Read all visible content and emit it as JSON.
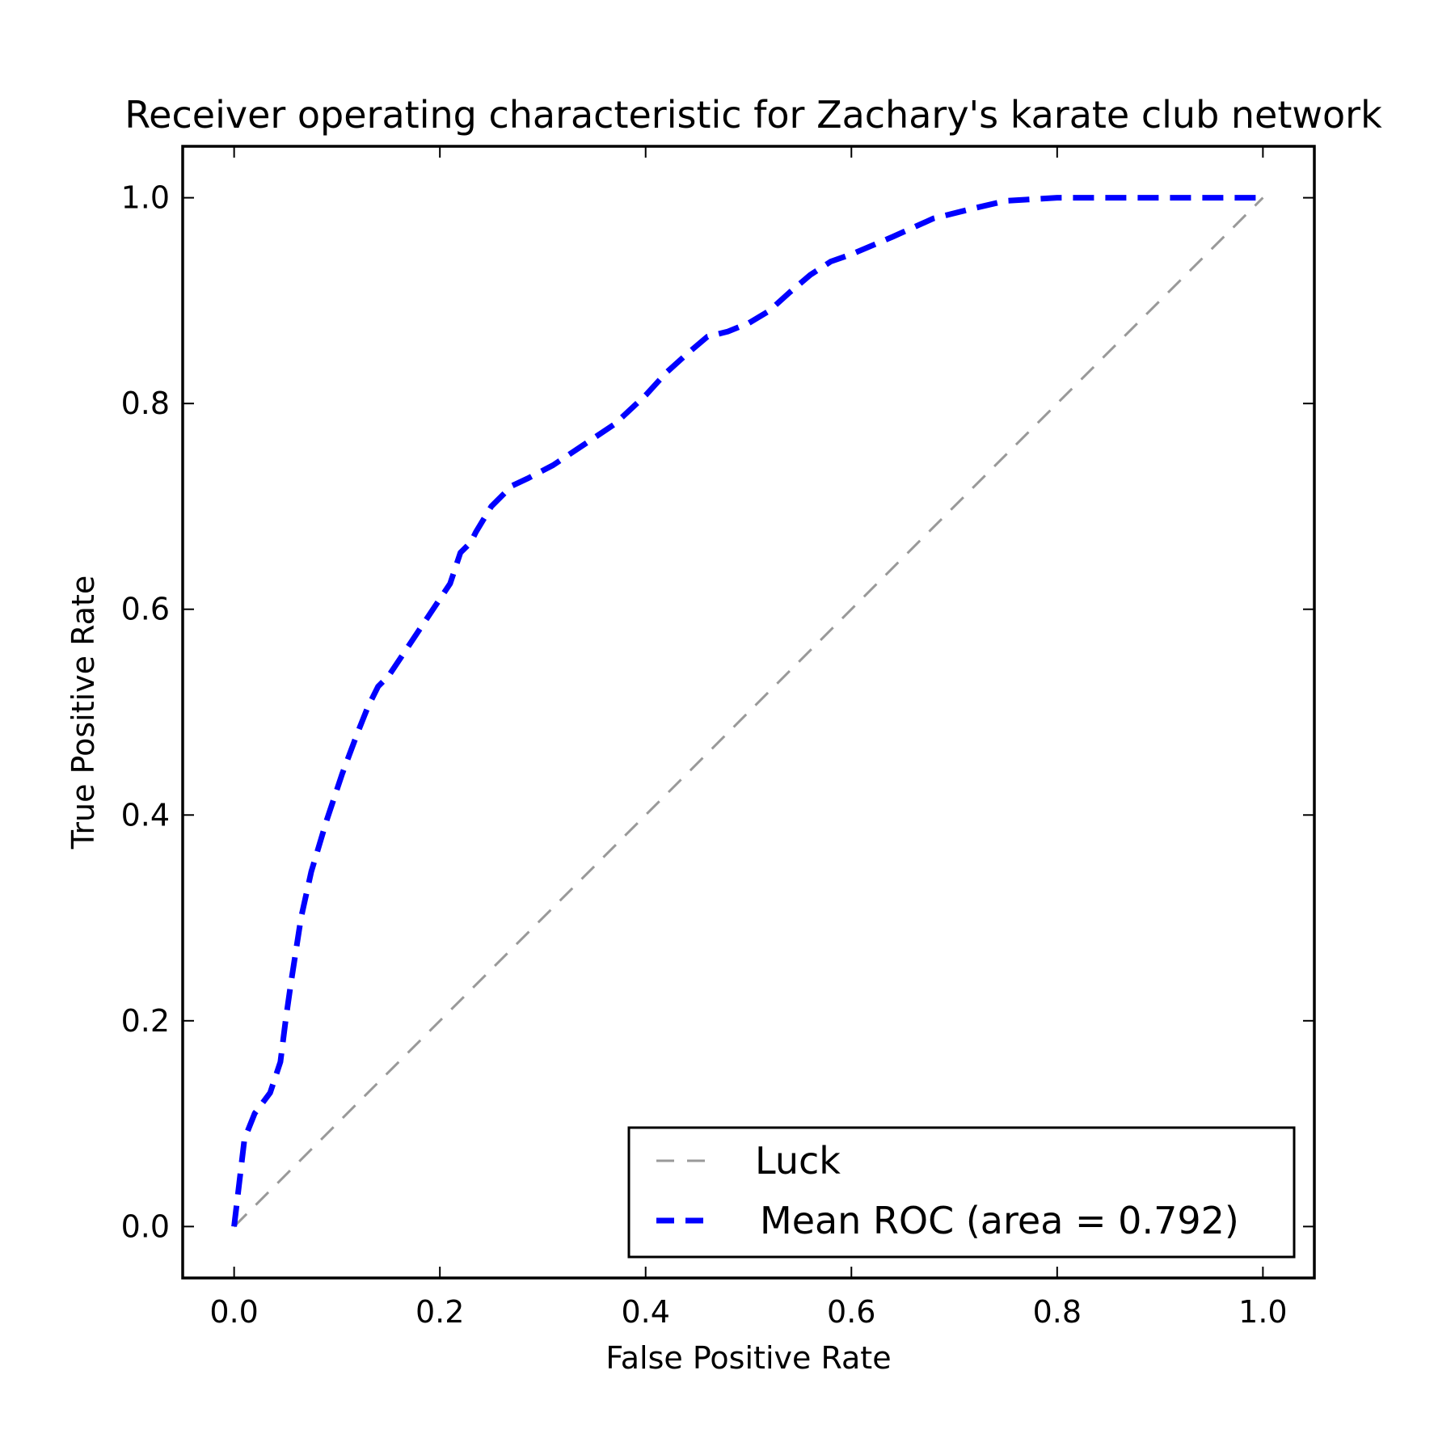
{
  "chart_data": {
    "type": "line",
    "title": "Receiver operating characteristic for Zachary's karate club network",
    "xlabel": "False Positive Rate",
    "ylabel": "True Positive Rate",
    "xlim": [
      -0.05,
      1.05
    ],
    "ylim": [
      -0.05,
      1.05
    ],
    "xticks": [
      0.0,
      0.2,
      0.4,
      0.6,
      0.8,
      1.0
    ],
    "yticks": [
      0.0,
      0.2,
      0.4,
      0.6,
      0.8,
      1.0
    ],
    "xtick_labels": [
      "0.0",
      "0.2",
      "0.4",
      "0.6",
      "0.8",
      "1.0"
    ],
    "ytick_labels": [
      "0.0",
      "0.2",
      "0.4",
      "0.6",
      "0.8",
      "1.0"
    ],
    "grid": false,
    "legend_position": "lower-right",
    "series": [
      {
        "name": "Luck",
        "color": "#999999",
        "line_style": "dashed",
        "x": [
          0.0,
          1.0
        ],
        "y": [
          0.0,
          1.0
        ]
      },
      {
        "name": "Mean ROC (area = 0.792)",
        "color": "#0000ff",
        "line_style": "dashed",
        "x": [
          0.0,
          0.01,
          0.02,
          0.035,
          0.045,
          0.05,
          0.055,
          0.065,
          0.075,
          0.09,
          0.105,
          0.12,
          0.13,
          0.14,
          0.15,
          0.17,
          0.19,
          0.21,
          0.22,
          0.23,
          0.235,
          0.25,
          0.27,
          0.285,
          0.31,
          0.34,
          0.37,
          0.4,
          0.42,
          0.44,
          0.46,
          0.48,
          0.5,
          0.52,
          0.54,
          0.56,
          0.58,
          0.6,
          0.64,
          0.68,
          0.72,
          0.75,
          0.8,
          0.85,
          0.9,
          0.95,
          1.0
        ],
        "y": [
          0.0,
          0.085,
          0.11,
          0.13,
          0.16,
          0.2,
          0.235,
          0.3,
          0.345,
          0.395,
          0.44,
          0.48,
          0.505,
          0.525,
          0.535,
          0.565,
          0.595,
          0.625,
          0.655,
          0.665,
          0.675,
          0.7,
          0.72,
          0.727,
          0.74,
          0.76,
          0.78,
          0.808,
          0.83,
          0.848,
          0.865,
          0.87,
          0.878,
          0.89,
          0.908,
          0.925,
          0.938,
          0.945,
          0.962,
          0.98,
          0.99,
          0.997,
          1.0,
          1.0,
          1.0,
          1.0,
          1.0
        ]
      }
    ]
  }
}
